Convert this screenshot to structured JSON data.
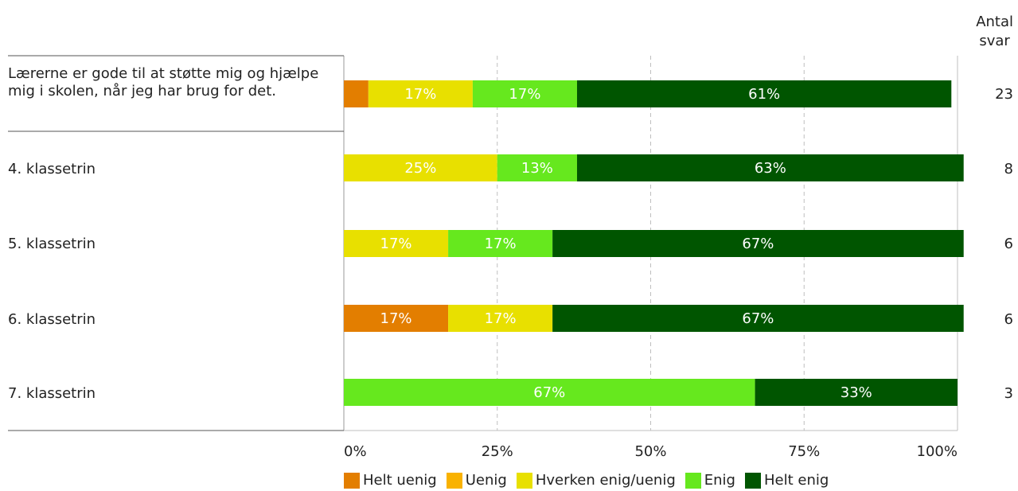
{
  "chart_data": {
    "type": "bar",
    "orientation": "horizontal",
    "stacked": true,
    "categories": [
      "Lærerne er gode til at støtte mig og hjælpe mig i skolen, når jeg har brug for det.",
      "4. klassetrin",
      "5. klassetrin",
      "6. klassetrin",
      "7. klassetrin"
    ],
    "series": [
      {
        "name": "Helt uenig",
        "color": "#E37E00",
        "values": [
          4,
          0,
          0,
          17,
          0
        ],
        "labels": [
          "",
          "",
          "",
          "17%",
          ""
        ]
      },
      {
        "name": "Uenig",
        "color": "#F9B200",
        "values": [
          0,
          0,
          0,
          0,
          0
        ],
        "labels": [
          "",
          "",
          "",
          "",
          ""
        ]
      },
      {
        "name": "Hverken enig/uenig",
        "color": "#E8E000",
        "values": [
          17,
          25,
          17,
          17,
          0
        ],
        "labels": [
          "17%",
          "25%",
          "17%",
          "17%",
          ""
        ]
      },
      {
        "name": "Enig",
        "color": "#66E81E",
        "values": [
          17,
          13,
          17,
          0,
          67
        ],
        "labels": [
          "17%",
          "13%",
          "17%",
          "",
          "67%"
        ]
      },
      {
        "name": "Helt enig",
        "color": "#005500",
        "values": [
          61,
          63,
          67,
          67,
          33
        ],
        "labels": [
          "61%",
          "63%",
          "67%",
          "67%",
          "33%"
        ]
      }
    ],
    "counts": [
      "23",
      "8",
      "6",
      "6",
      "3"
    ],
    "count_header": [
      "Antal",
      "svar"
    ],
    "xticks": [
      "0%",
      "25%",
      "50%",
      "75%",
      "100%"
    ],
    "xlim": [
      0,
      100
    ],
    "grid": true,
    "legend_position": "bottom"
  }
}
